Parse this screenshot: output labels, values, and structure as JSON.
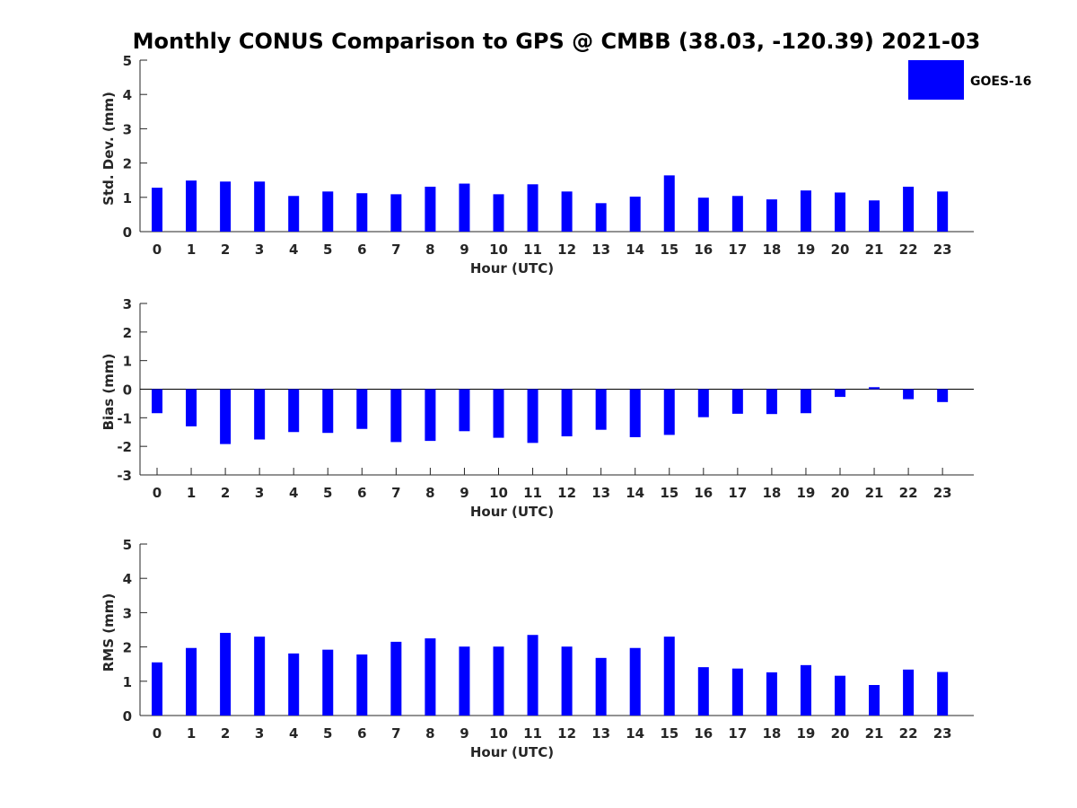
{
  "figure_title": "Monthly CONUS Comparison to GPS @ CMBB (38.03, -120.39) 2021-03",
  "legend": {
    "label": "GOES-16",
    "color": "#0000ff"
  },
  "colors": {
    "bar": "#0000ff",
    "axis": "#262626"
  },
  "chart_data": [
    {
      "type": "bar",
      "title": "",
      "xlabel": "Hour (UTC)",
      "ylabel": "Std. Dev. (mm)",
      "ylim": [
        0,
        5
      ],
      "yticks": [
        0,
        1,
        2,
        3,
        4,
        5
      ],
      "categories": [
        "0",
        "1",
        "2",
        "3",
        "4",
        "5",
        "6",
        "7",
        "8",
        "9",
        "10",
        "11",
        "12",
        "13",
        "14",
        "15",
        "16",
        "17",
        "18",
        "19",
        "20",
        "21",
        "22",
        "23"
      ],
      "series": [
        {
          "name": "GOES-16",
          "values": [
            1.28,
            1.49,
            1.46,
            1.46,
            1.04,
            1.17,
            1.12,
            1.09,
            1.31,
            1.4,
            1.09,
            1.38,
            1.17,
            0.83,
            1.02,
            1.64,
            0.99,
            1.04,
            0.94,
            1.2,
            1.14,
            0.91,
            1.31,
            1.17
          ]
        }
      ]
    },
    {
      "type": "bar",
      "title": "",
      "xlabel": "Hour (UTC)",
      "ylabel": "Bias (mm)",
      "ylim": [
        -3,
        3
      ],
      "yticks": [
        -3,
        -2,
        -1,
        0,
        1,
        2,
        3
      ],
      "categories": [
        "0",
        "1",
        "2",
        "3",
        "4",
        "5",
        "6",
        "7",
        "8",
        "9",
        "10",
        "11",
        "12",
        "13",
        "14",
        "15",
        "16",
        "17",
        "18",
        "19",
        "20",
        "21",
        "22",
        "23"
      ],
      "series": [
        {
          "name": "GOES-16",
          "values": [
            -0.84,
            -1.3,
            -1.92,
            -1.76,
            -1.5,
            -1.53,
            -1.39,
            -1.85,
            -1.81,
            -1.47,
            -1.7,
            -1.88,
            -1.65,
            -1.42,
            -1.68,
            -1.6,
            -0.98,
            -0.86,
            -0.87,
            -0.84,
            -0.27,
            0.07,
            -0.35,
            -0.45
          ]
        }
      ]
    },
    {
      "type": "bar",
      "title": "",
      "xlabel": "Hour (UTC)",
      "ylabel": "RMS (mm)",
      "ylim": [
        0,
        5
      ],
      "yticks": [
        0,
        1,
        2,
        3,
        4,
        5
      ],
      "categories": [
        "0",
        "1",
        "2",
        "3",
        "4",
        "5",
        "6",
        "7",
        "8",
        "9",
        "10",
        "11",
        "12",
        "13",
        "14",
        "15",
        "16",
        "17",
        "18",
        "19",
        "20",
        "21",
        "22",
        "23"
      ],
      "series": [
        {
          "name": "GOES-16",
          "values": [
            1.55,
            1.97,
            2.41,
            2.3,
            1.81,
            1.92,
            1.78,
            2.15,
            2.25,
            2.01,
            2.01,
            2.35,
            2.01,
            1.68,
            1.97,
            2.3,
            1.41,
            1.37,
            1.26,
            1.47,
            1.16,
            0.89,
            1.34,
            1.27
          ]
        }
      ]
    }
  ]
}
